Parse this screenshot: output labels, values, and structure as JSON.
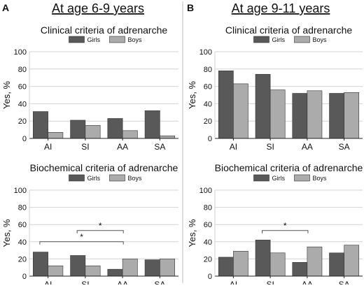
{
  "figure": {
    "panel_a_letter": "A",
    "panel_a_heading": "At age 6-9 years",
    "panel_b_letter": "B",
    "panel_b_heading": "At age 9-11 years",
    "colors": {
      "girls": "#595959",
      "boys": "#ababab",
      "grid": "#d4d4d4",
      "divider": "#bdbdbd"
    }
  },
  "chart_data": [
    {
      "type": "bar",
      "title": "Clinical criteria of adrenarche",
      "ylabel": "Yes, %",
      "ylim": [
        0,
        100
      ],
      "yticks": [
        0,
        20,
        40,
        60,
        80,
        100
      ],
      "grid": true,
      "legend": "top-center",
      "categories": [
        "AI",
        "SI",
        "AA",
        "SA"
      ],
      "series": [
        {
          "name": "Girls",
          "values": [
            31,
            21,
            23,
            32
          ]
        },
        {
          "name": "Boys",
          "values": [
            7,
            15,
            9,
            3
          ]
        }
      ],
      "annotations": []
    },
    {
      "type": "bar",
      "title": "Biochemical criteria of adrenarche",
      "ylabel": "Yes, %",
      "ylim": [
        0,
        100
      ],
      "yticks": [
        0,
        20,
        40,
        60,
        80,
        100
      ],
      "grid": true,
      "legend": "top-center",
      "categories": [
        "AI",
        "SI",
        "AA",
        "SA"
      ],
      "series": [
        {
          "name": "Girls",
          "values": [
            28,
            24,
            8,
            19
          ]
        },
        {
          "name": "Boys",
          "values": [
            12,
            12,
            20,
            20
          ]
        }
      ],
      "annotations": [
        {
          "from": "SI",
          "to": "AA",
          "label": "*",
          "y": 53
        },
        {
          "from": "AI",
          "to": "AA",
          "label": "*",
          "y": 40
        }
      ]
    },
    {
      "type": "bar",
      "title": "Clinical criteria of adrenarche",
      "ylabel": "Yes, %",
      "ylim": [
        0,
        100
      ],
      "yticks": [
        0,
        20,
        40,
        60,
        80,
        100
      ],
      "grid": true,
      "legend": "top-center",
      "categories": [
        "AI",
        "SI",
        "AA",
        "SA"
      ],
      "series": [
        {
          "name": "Girls",
          "values": [
            78,
            74,
            52,
            52
          ]
        },
        {
          "name": "Boys",
          "values": [
            63,
            56,
            55,
            53
          ]
        }
      ],
      "annotations": []
    },
    {
      "type": "bar",
      "title": "Biochemical criteria of adrenarche",
      "ylabel": "Yes, %",
      "ylim": [
        0,
        100
      ],
      "yticks": [
        0,
        20,
        40,
        60,
        80,
        100
      ],
      "grid": true,
      "legend": "top-center",
      "categories": [
        "AI",
        "SI",
        "AA",
        "SA"
      ],
      "series": [
        {
          "name": "Girls",
          "values": [
            22,
            42,
            16,
            27
          ]
        },
        {
          "name": "Boys",
          "values": [
            29,
            27,
            34,
            36
          ]
        }
      ],
      "annotations": [
        {
          "from": "SI",
          "to": "AA",
          "label": "*",
          "y": 53
        }
      ]
    }
  ]
}
